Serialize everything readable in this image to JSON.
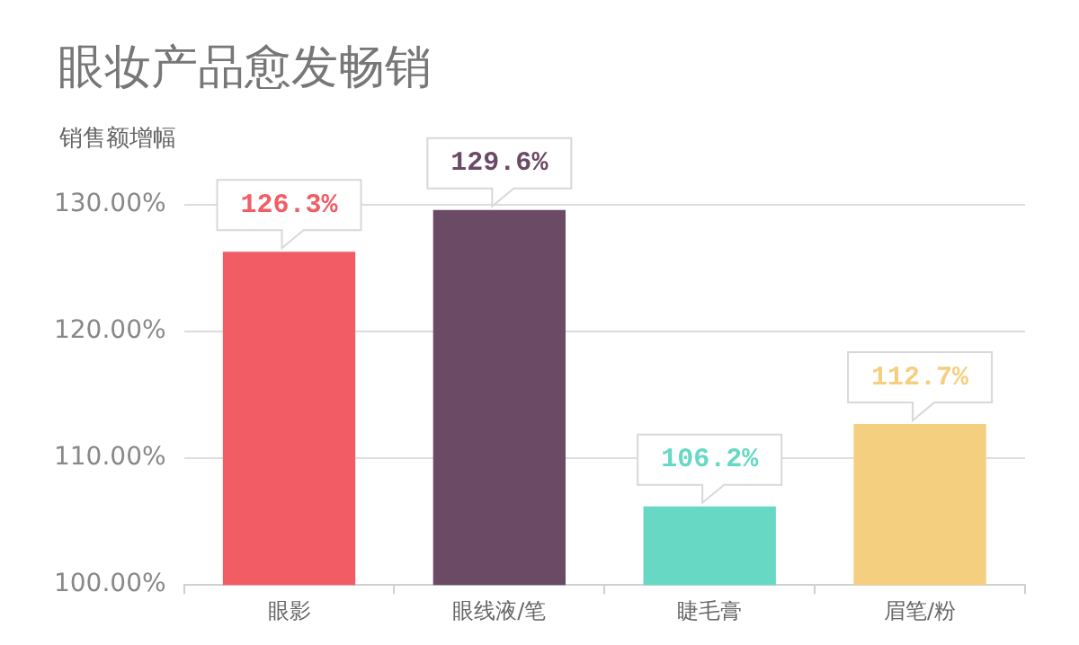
{
  "chart_data": {
    "type": "bar",
    "title": "眼妆产品愈发畅销",
    "ylabel": "销售额增幅",
    "categories": [
      "眼影",
      "眼线液/笔",
      "睫毛膏",
      "眉笔/粉"
    ],
    "values": [
      126.3,
      129.6,
      106.2,
      112.7
    ],
    "colors": [
      "#f25c64",
      "#6b4a66",
      "#66d8c4",
      "#f5cf80"
    ],
    "value_labels": [
      "126.3%",
      "129.6%",
      "106.2%",
      "112.7%"
    ],
    "ylim": [
      100,
      130
    ],
    "yticks": [
      {
        "value": 100,
        "label": "100.00%"
      },
      {
        "value": 110,
        "label": "110.00%"
      },
      {
        "value": 120,
        "label": "120.00%"
      },
      {
        "value": 130,
        "label": "130.00%"
      }
    ],
    "grid": "y",
    "legend": false
  }
}
